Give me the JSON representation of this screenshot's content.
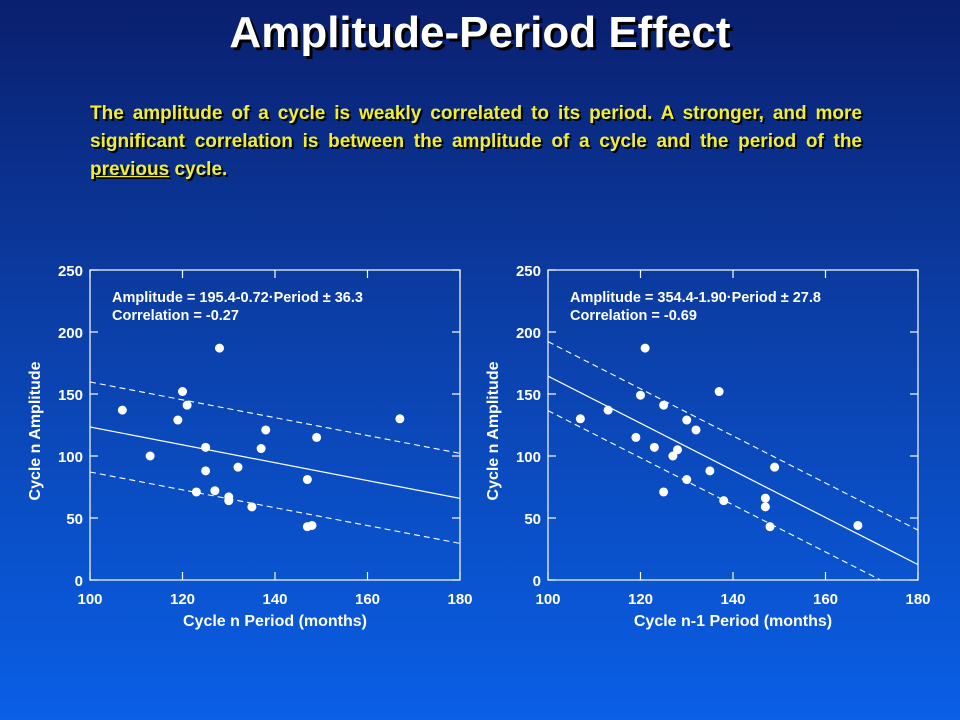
{
  "slide": {
    "title": "Amplitude-Period Effect",
    "intro": {
      "before": "The amplitude of a cycle is weakly correlated to its period. A stronger, and more significant correlation is between the amplitude of a cycle and the period of the ",
      "emphasis": "previous",
      "after": " cycle."
    }
  },
  "chart_data": [
    {
      "type": "scatter",
      "title": "",
      "xlabel": "Cycle n Period (months)",
      "ylabel": "Cycle n Amplitude",
      "xlim": [
        100,
        180
      ],
      "ylim": [
        0,
        250
      ],
      "xticks": [
        100,
        120,
        140,
        160,
        180
      ],
      "yticks": [
        0,
        50,
        100,
        150,
        200,
        250
      ],
      "grid": false,
      "annotations": [
        "Amplitude = 195.4-0.72·Period ± 36.3",
        "Correlation = -0.27"
      ],
      "fit": {
        "intercept": 195.4,
        "slope": -0.72,
        "band": 36.3
      },
      "points": [
        {
          "x": 107,
          "y": 137
        },
        {
          "x": 113,
          "y": 100
        },
        {
          "x": 119,
          "y": 129
        },
        {
          "x": 120,
          "y": 152
        },
        {
          "x": 121,
          "y": 141
        },
        {
          "x": 123,
          "y": 71
        },
        {
          "x": 125,
          "y": 107
        },
        {
          "x": 125,
          "y": 88
        },
        {
          "x": 127,
          "y": 72
        },
        {
          "x": 128,
          "y": 187
        },
        {
          "x": 130,
          "y": 67
        },
        {
          "x": 130,
          "y": 64
        },
        {
          "x": 132,
          "y": 91
        },
        {
          "x": 135,
          "y": 59
        },
        {
          "x": 137,
          "y": 106
        },
        {
          "x": 138,
          "y": 121
        },
        {
          "x": 147,
          "y": 81
        },
        {
          "x": 147,
          "y": 43
        },
        {
          "x": 148,
          "y": 44
        },
        {
          "x": 149,
          "y": 115
        },
        {
          "x": 167,
          "y": 130
        }
      ]
    },
    {
      "type": "scatter",
      "title": "",
      "xlabel": "Cycle n-1 Period (months)",
      "ylabel": "Cycle n Amplitude",
      "xlim": [
        100,
        180
      ],
      "ylim": [
        0,
        250
      ],
      "xticks": [
        100,
        120,
        140,
        160,
        180
      ],
      "yticks": [
        0,
        50,
        100,
        150,
        200,
        250
      ],
      "grid": false,
      "annotations": [
        "Amplitude = 354.4-1.90·Period ± 27.8",
        "Correlation = -0.69"
      ],
      "fit": {
        "intercept": 354.4,
        "slope": -1.9,
        "band": 27.8
      },
      "points": [
        {
          "x": 107,
          "y": 130
        },
        {
          "x": 113,
          "y": 137
        },
        {
          "x": 119,
          "y": 115
        },
        {
          "x": 120,
          "y": 149
        },
        {
          "x": 121,
          "y": 187
        },
        {
          "x": 123,
          "y": 107
        },
        {
          "x": 125,
          "y": 141
        },
        {
          "x": 125,
          "y": 71
        },
        {
          "x": 127,
          "y": 100
        },
        {
          "x": 128,
          "y": 105
        },
        {
          "x": 130,
          "y": 129
        },
        {
          "x": 130,
          "y": 81
        },
        {
          "x": 132,
          "y": 121
        },
        {
          "x": 135,
          "y": 88
        },
        {
          "x": 137,
          "y": 152
        },
        {
          "x": 138,
          "y": 64
        },
        {
          "x": 147,
          "y": 66
        },
        {
          "x": 147,
          "y": 59
        },
        {
          "x": 148,
          "y": 43
        },
        {
          "x": 149,
          "y": 91
        },
        {
          "x": 167,
          "y": 44
        }
      ]
    }
  ]
}
